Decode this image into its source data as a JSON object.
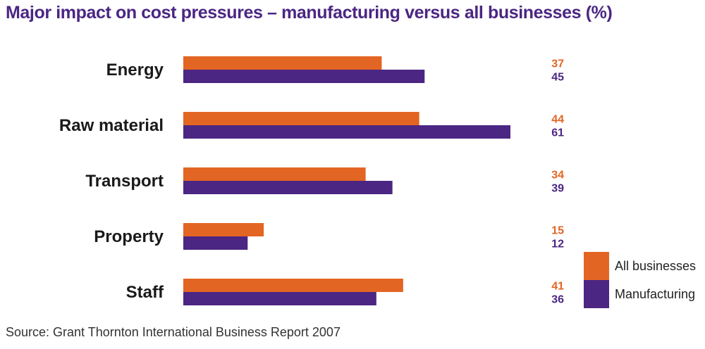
{
  "chart_data": {
    "type": "bar",
    "orientation": "horizontal",
    "title": "Major impact on cost pressures – manufacturing versus all businesses (%)",
    "source": "Source: Grant Thornton International Business Report 2007",
    "categories": [
      "Energy",
      "Raw material",
      "Transport",
      "Property",
      "Staff"
    ],
    "series": [
      {
        "name": "All businesses",
        "color": "#e36523",
        "values": [
          37,
          44,
          34,
          15,
          41
        ]
      },
      {
        "name": "Manufacturing",
        "color": "#4b2683",
        "values": [
          45,
          61,
          39,
          12,
          36
        ]
      }
    ],
    "xlim": [
      0,
      61
    ],
    "legend_position": "bottom-right",
    "grid": false
  }
}
